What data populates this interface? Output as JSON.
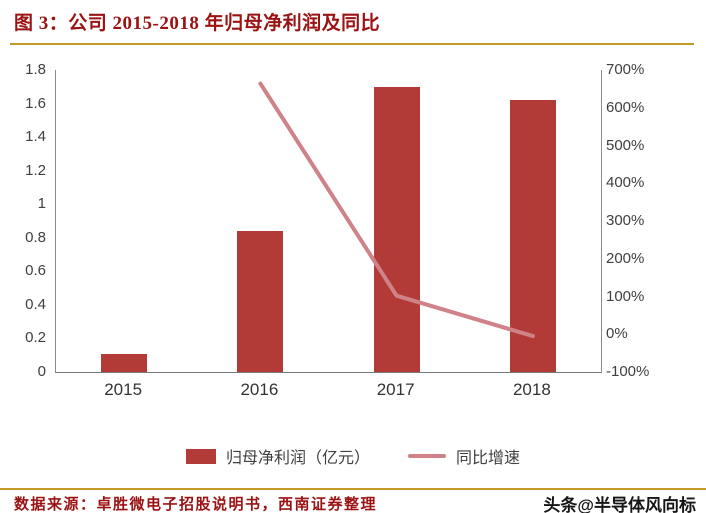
{
  "header": {
    "title": "图 3：公司 2015-2018 年归母净利润及同比"
  },
  "chart_data": {
    "type": "bar",
    "combo": "bar+line",
    "title": "公司 2015-2018 年归母净利润及同比",
    "categories": [
      "2015",
      "2016",
      "2017",
      "2018"
    ],
    "series": [
      {
        "name": "归母净利润（亿元）",
        "type": "bar",
        "axis": "left",
        "color": "#b23b38",
        "values": [
          0.11,
          0.84,
          1.7,
          1.62
        ]
      },
      {
        "name": "同比增速",
        "type": "line",
        "axis": "right",
        "color": "#cf8287",
        "values": [
          null,
          664,
          102,
          -5
        ]
      }
    ],
    "left_axis": {
      "min": 0,
      "max": 1.8,
      "step": 0.2,
      "ticks": [
        "0",
        "0.2",
        "0.4",
        "0.6",
        "0.8",
        "1",
        "1.2",
        "1.4",
        "1.6",
        "1.8"
      ]
    },
    "right_axis": {
      "min": -100,
      "max": 700,
      "step": 100,
      "ticks": [
        "-100%",
        "0%",
        "100%",
        "200%",
        "300%",
        "400%",
        "500%",
        "600%",
        "700%"
      ]
    },
    "grid": false,
    "legend_position": "bottom"
  },
  "footer": {
    "source": "数据来源：卓胜微电子招股说明书，西南证券整理",
    "watermark": "头条@半导体风向标"
  },
  "colors": {
    "title_red": "#9a1212",
    "gold_rule": "#c49a2a",
    "bar": "#b23b38",
    "line": "#cf8287",
    "axis_line": "#8c8c8c"
  }
}
